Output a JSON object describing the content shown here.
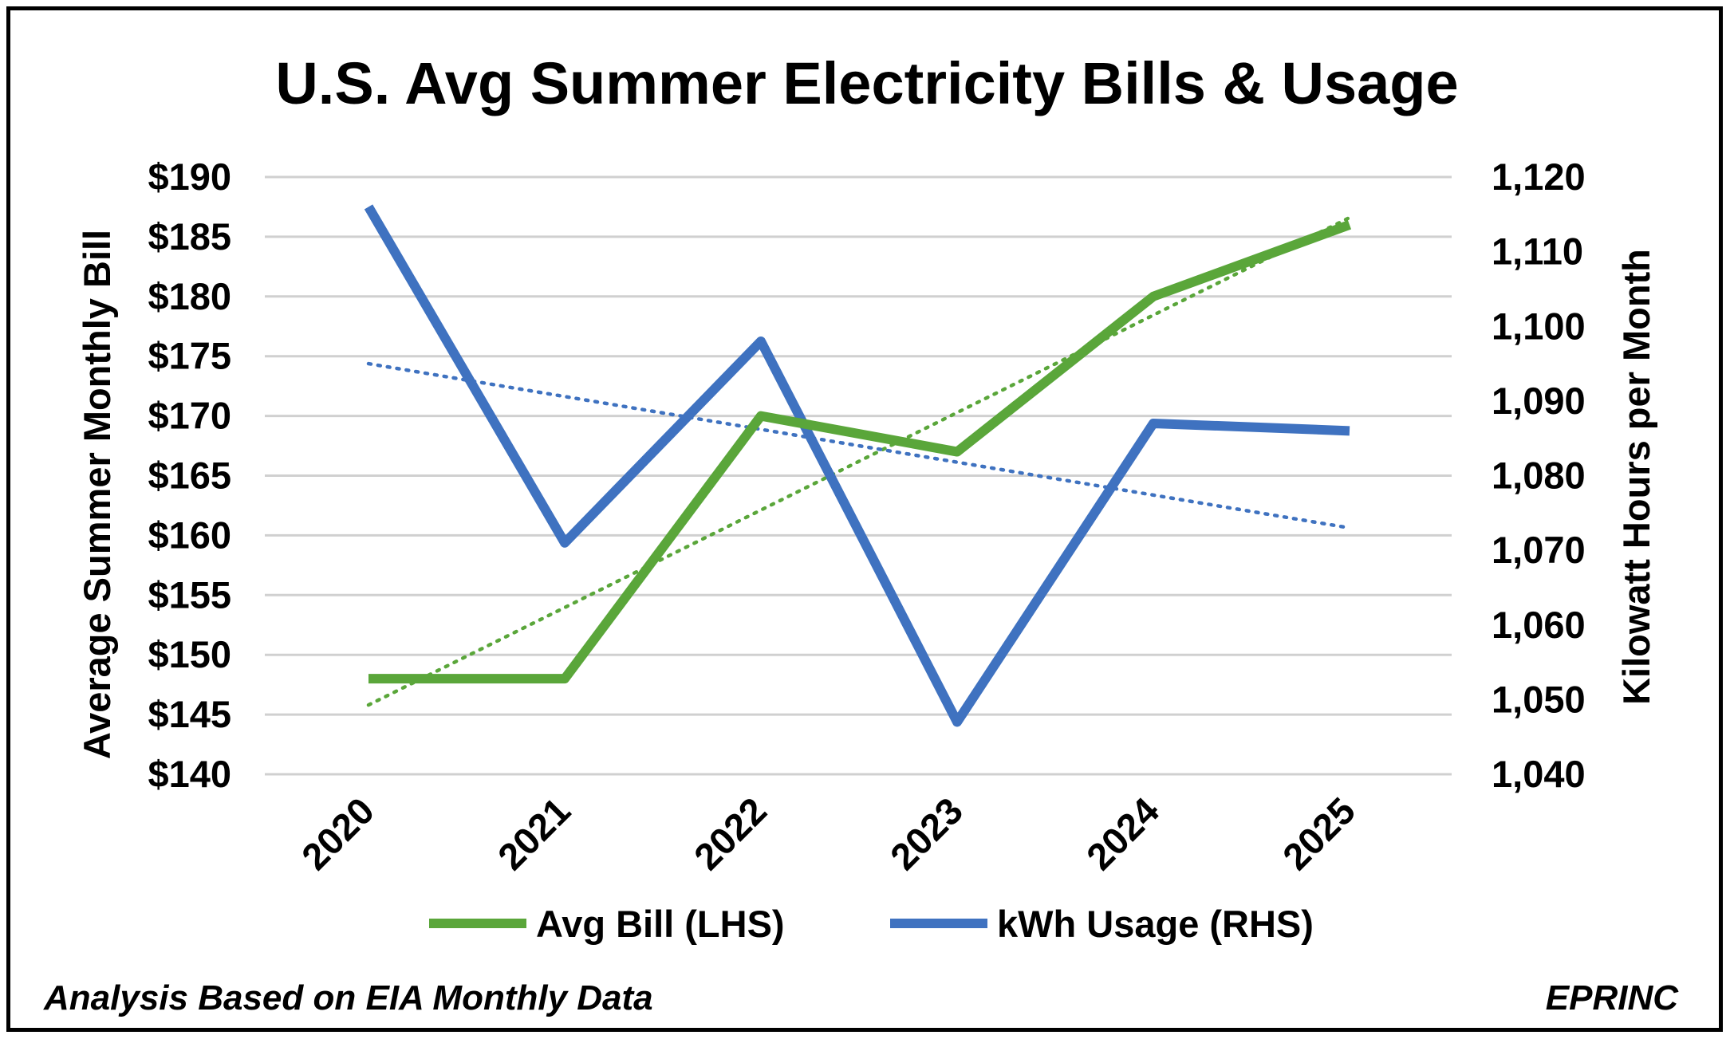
{
  "chart_data": {
    "type": "line",
    "title": "U.S. Avg Summer Electricity Bills & Usage",
    "categories": [
      "2020",
      "2021",
      "2022",
      "2023",
      "2024",
      "2025"
    ],
    "y_left": {
      "label": "Average Summer Monthly Bill",
      "range": [
        140,
        190
      ],
      "ticks": [
        "$140",
        "$145",
        "$150",
        "$155",
        "$160",
        "$165",
        "$170",
        "$175",
        "$180",
        "$185",
        "$190"
      ]
    },
    "y_right": {
      "label": "Kilowatt Hours per Month",
      "range": [
        1040,
        1120
      ],
      "ticks": [
        "1,040",
        "1,050",
        "1,060",
        "1,070",
        "1,080",
        "1,090",
        "1,100",
        "1,110",
        "1,120"
      ]
    },
    "series": [
      {
        "name": "Avg Bill (LHS)",
        "axis": "left",
        "color": "#5aa63a",
        "values": [
          148,
          148,
          170,
          167,
          180,
          186
        ],
        "trendline": [
          145.8,
          186.6
        ]
      },
      {
        "name": "kWh Usage (RHS)",
        "axis": "right",
        "color": "#3f72c0",
        "values": [
          1116,
          1071,
          1098,
          1047,
          1087,
          1086
        ],
        "trendline": [
          1095,
          1073
        ]
      }
    ],
    "grid": true,
    "legend_position": "bottom"
  },
  "footer": {
    "left": "Analysis Based on EIA Monthly Data",
    "right": "EPRINC"
  }
}
